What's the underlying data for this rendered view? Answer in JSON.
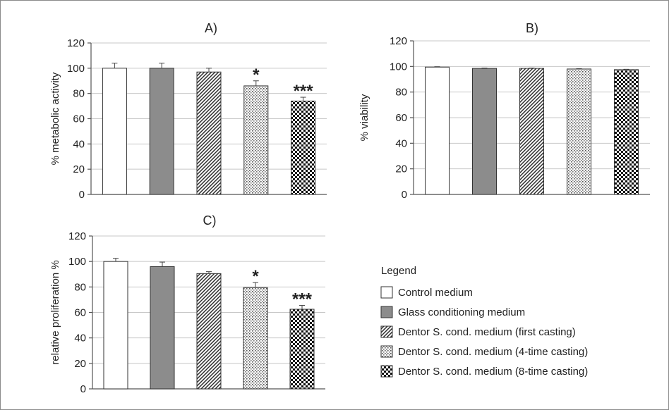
{
  "colors": {
    "grid": "#c8c8c8",
    "axis": "#555555",
    "glass": "#8c8c8c",
    "control": "#ffffff"
  },
  "chart_data": [
    {
      "type": "bar",
      "title": "A)",
      "ylabel": "% metabolic activity",
      "ylim": [
        0,
        120
      ],
      "yticks": [
        "0",
        "20",
        "40",
        "60",
        "80",
        "100",
        "120"
      ],
      "grid": true,
      "categories": [
        "Control medium",
        "Glass conditioning medium",
        "Dentor S. cond. medium (first casting)",
        "Dentor S. cond. medium (4-time casting)",
        "Dentor S. cond. medium (8-time casting)"
      ],
      "values": [
        100,
        100,
        97,
        86,
        74
      ],
      "errors": [
        4,
        4,
        3,
        4,
        3
      ],
      "significance": [
        "",
        "",
        "",
        "*",
        "***"
      ]
    },
    {
      "type": "bar",
      "title": "B)",
      "ylabel": "% viability",
      "ylim": [
        0,
        120
      ],
      "yticks": [
        "0",
        "20",
        "40",
        "60",
        "80",
        "100",
        "120"
      ],
      "grid": true,
      "categories": [
        "Control medium",
        "Glass conditioning medium",
        "Dentor S. cond. medium (first casting)",
        "Dentor S. cond. medium (4-time casting)",
        "Dentor S. cond. medium (8-time casting)"
      ],
      "values": [
        99.5,
        98.5,
        98.5,
        98,
        97.5
      ],
      "errors": [
        0.3,
        0.3,
        0.3,
        0.3,
        0.3
      ],
      "significance": [
        "",
        "",
        "",
        "",
        ""
      ]
    },
    {
      "type": "bar",
      "title": "C)",
      "ylabel": "relative proliferation %",
      "ylim": [
        0,
        120
      ],
      "yticks": [
        "0",
        "20",
        "40",
        "60",
        "80",
        "100",
        "120"
      ],
      "grid": true,
      "categories": [
        "Control medium",
        "Glass conditioning medium",
        "Dentor S. cond. medium (first casting)",
        "Dentor S. cond. medium (4-time casting)",
        "Dentor S. cond. medium (8-time casting)"
      ],
      "values": [
        100,
        96,
        90.5,
        79.5,
        62.5
      ],
      "errors": [
        2.5,
        3.5,
        1.5,
        4,
        3
      ],
      "significance": [
        "",
        "",
        "",
        "*",
        "***"
      ]
    }
  ],
  "legend": {
    "title": "Legend",
    "items": [
      {
        "label": "Control medium",
        "pattern": "white"
      },
      {
        "label": "Glass conditioning medium",
        "pattern": "gray"
      },
      {
        "label": "Dentor S. cond. medium (first casting)",
        "pattern": "diagonal"
      },
      {
        "label": "Dentor S. cond. medium (4-time casting)",
        "pattern": "dots"
      },
      {
        "label": "Dentor S. cond. medium (8-time casting)",
        "pattern": "checker"
      }
    ]
  }
}
